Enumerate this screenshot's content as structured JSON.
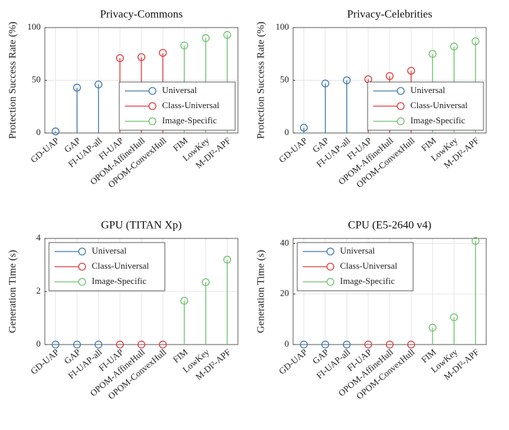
{
  "chart_data": [
    {
      "type": "stem",
      "title": "Privacy-Commons",
      "ylabel": "Protection Success Rate (%)",
      "categories": [
        "GD-UAP",
        "GAP",
        "FI-UAP-all",
        "FI-UAP",
        "OPOM-AffineHull",
        "OPOM-ConvexHull",
        "FIM",
        "LowKey",
        "M-DI²-APF"
      ],
      "series": [
        {
          "name": "Universal",
          "color": "#3d78b0",
          "values": [
            1.5,
            43,
            46,
            null,
            null,
            null,
            null,
            null,
            null
          ]
        },
        {
          "name": "Class-Universal",
          "color": "#e0363a",
          "values": [
            null,
            null,
            null,
            71,
            72,
            76,
            null,
            null,
            null
          ]
        },
        {
          "name": "Image-Specific",
          "color": "#6cc26c",
          "values": [
            null,
            null,
            null,
            null,
            null,
            null,
            83,
            90,
            93
          ]
        }
      ],
      "ylim": [
        0,
        100
      ],
      "yticks": [
        0,
        50,
        100
      ],
      "grid": true,
      "legend_loc": "east"
    },
    {
      "type": "stem",
      "title": "Privacy-Celebrities",
      "ylabel": "Protection Success Rate (%)",
      "categories": [
        "GD-UAP",
        "GAP",
        "FI-UAP-all",
        "FI-UAP",
        "OPOM-AffineHull",
        "OPOM-ConvexHull",
        "FIM",
        "LowKey",
        "M-DI²-APF"
      ],
      "series": [
        {
          "name": "Universal",
          "color": "#3d78b0",
          "values": [
            5,
            47,
            50,
            null,
            null,
            null,
            null,
            null,
            null
          ]
        },
        {
          "name": "Class-Universal",
          "color": "#e0363a",
          "values": [
            null,
            null,
            null,
            51,
            54,
            59,
            null,
            null,
            null
          ]
        },
        {
          "name": "Image-Specific",
          "color": "#6cc26c",
          "values": [
            null,
            null,
            null,
            null,
            null,
            null,
            75,
            82,
            87
          ]
        }
      ],
      "ylim": [
        0,
        100
      ],
      "yticks": [
        0,
        50,
        100
      ],
      "grid": true,
      "legend_loc": "east"
    },
    {
      "type": "stem",
      "title": "GPU (TITAN Xp)",
      "ylabel": "Generation Time (s)",
      "categories": [
        "GD-UAP",
        "GAP",
        "FI-UAP-all",
        "FI-UAP",
        "OPOM-AffineHull",
        "OPOM-ConvexHull",
        "FIM",
        "LowKey",
        "M-DI²-APF"
      ],
      "series": [
        {
          "name": "Universal",
          "color": "#3d78b0",
          "values": [
            0,
            0,
            0,
            null,
            null,
            null,
            null,
            null,
            null
          ]
        },
        {
          "name": "Class-Universal",
          "color": "#e0363a",
          "values": [
            null,
            null,
            null,
            0,
            0,
            0,
            null,
            null,
            null
          ]
        },
        {
          "name": "Image-Specific",
          "color": "#6cc26c",
          "values": [
            null,
            null,
            null,
            null,
            null,
            null,
            1.65,
            2.35,
            3.2
          ]
        }
      ],
      "ylim": [
        0,
        4
      ],
      "yticks": [
        0,
        2,
        4
      ],
      "grid": true,
      "legend_loc": "northwest"
    },
    {
      "type": "stem",
      "title": "CPU (E5-2640 v4)",
      "ylabel": "Generation Time (s)",
      "categories": [
        "GD-UAP",
        "GAP",
        "FI-UAP-all",
        "FI-UAP",
        "OPOM-AffineHull",
        "OPOM-ConvexHull",
        "FIM",
        "LowKey",
        "M-DI²-APF"
      ],
      "series": [
        {
          "name": "Universal",
          "color": "#3d78b0",
          "values": [
            0,
            0,
            0,
            null,
            null,
            null,
            null,
            null,
            null
          ]
        },
        {
          "name": "Class-Universal",
          "color": "#e0363a",
          "values": [
            null,
            null,
            null,
            0,
            0,
            0,
            null,
            null,
            null
          ]
        },
        {
          "name": "Image-Specific",
          "color": "#6cc26c",
          "values": [
            null,
            null,
            null,
            null,
            null,
            null,
            6.7,
            10.8,
            41
          ]
        }
      ],
      "ylim": [
        0,
        42
      ],
      "yticks": [
        0,
        20,
        40
      ],
      "grid": true,
      "legend_loc": "northwest"
    }
  ]
}
